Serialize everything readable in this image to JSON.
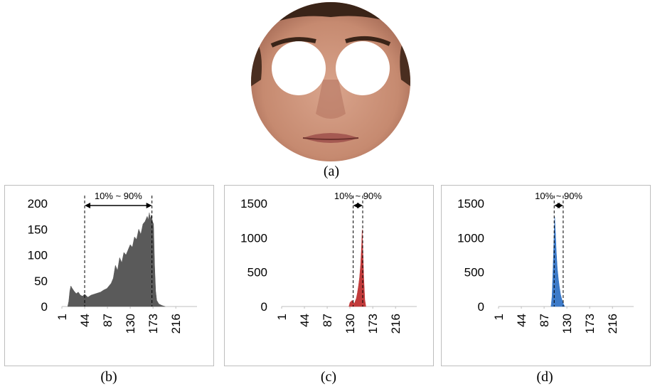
{
  "captions": {
    "a": "(a)",
    "b": "(b)",
    "c": "(c)",
    "d": "(d)"
  },
  "colors": {
    "face_skin": "#c9917a",
    "hair": "#3a2418",
    "b_fill": "#5a5a5a",
    "c_fill": "#c23b3b",
    "d_fill": "#3d7bc9"
  },
  "chart_data": [
    {
      "type": "area",
      "panel": "b",
      "range_label": "10% ~ 90%",
      "ylim": [
        0,
        200
      ],
      "yticks": [
        0,
        50,
        100,
        150,
        200
      ],
      "xlim": [
        1,
        256
      ],
      "xticks": [
        1,
        44,
        87,
        130,
        173,
        216
      ],
      "marker_x": [
        44,
        171
      ],
      "x": [
        12,
        14,
        16,
        18,
        20,
        24,
        28,
        32,
        36,
        40,
        44,
        50,
        56,
        62,
        68,
        74,
        80,
        86,
        90,
        94,
        98,
        102,
        106,
        110,
        114,
        118,
        122,
        126,
        130,
        134,
        138,
        142,
        146,
        150,
        154,
        158,
        162,
        164,
        166,
        168,
        170,
        172,
        174,
        176,
        178,
        180,
        184,
        190,
        196
      ],
      "values": [
        0,
        10,
        30,
        40,
        36,
        30,
        25,
        28,
        22,
        20,
        24,
        18,
        22,
        24,
        26,
        28,
        32,
        35,
        40,
        45,
        55,
        80,
        70,
        95,
        85,
        105,
        100,
        110,
        120,
        115,
        135,
        130,
        150,
        140,
        160,
        165,
        175,
        168,
        182,
        170,
        178,
        165,
        160,
        80,
        30,
        12,
        5,
        2,
        0
      ]
    },
    {
      "type": "area",
      "panel": "c",
      "range_label": "10% ~ 90%",
      "ylim": [
        0,
        1500
      ],
      "yticks": [
        0,
        500,
        1000,
        1500
      ],
      "xlim": [
        1,
        256
      ],
      "xticks": [
        1,
        44,
        87,
        130,
        173,
        216
      ],
      "marker_x": [
        136,
        154
      ],
      "x": [
        128,
        130,
        134,
        136,
        138,
        140,
        142,
        144,
        146,
        148,
        150,
        152,
        153,
        154,
        156,
        158,
        160
      ],
      "values": [
        0,
        60,
        90,
        70,
        40,
        80,
        120,
        200,
        300,
        420,
        600,
        900,
        1120,
        900,
        420,
        100,
        0
      ]
    },
    {
      "type": "area",
      "panel": "d",
      "range_label": "10% ~ 90%",
      "ylim": [
        0,
        1500
      ],
      "yticks": [
        0,
        500,
        1000,
        1500
      ],
      "xlim": [
        1,
        256
      ],
      "xticks": [
        1,
        44,
        87,
        130,
        173,
        216
      ],
      "marker_x": [
        106,
        123
      ],
      "x": [
        100,
        102,
        104,
        106,
        107,
        108,
        110,
        112,
        114,
        116,
        118,
        120,
        122,
        124,
        126
      ],
      "values": [
        0,
        150,
        600,
        1100,
        1300,
        1150,
        800,
        550,
        400,
        280,
        180,
        120,
        70,
        30,
        0
      ]
    }
  ]
}
